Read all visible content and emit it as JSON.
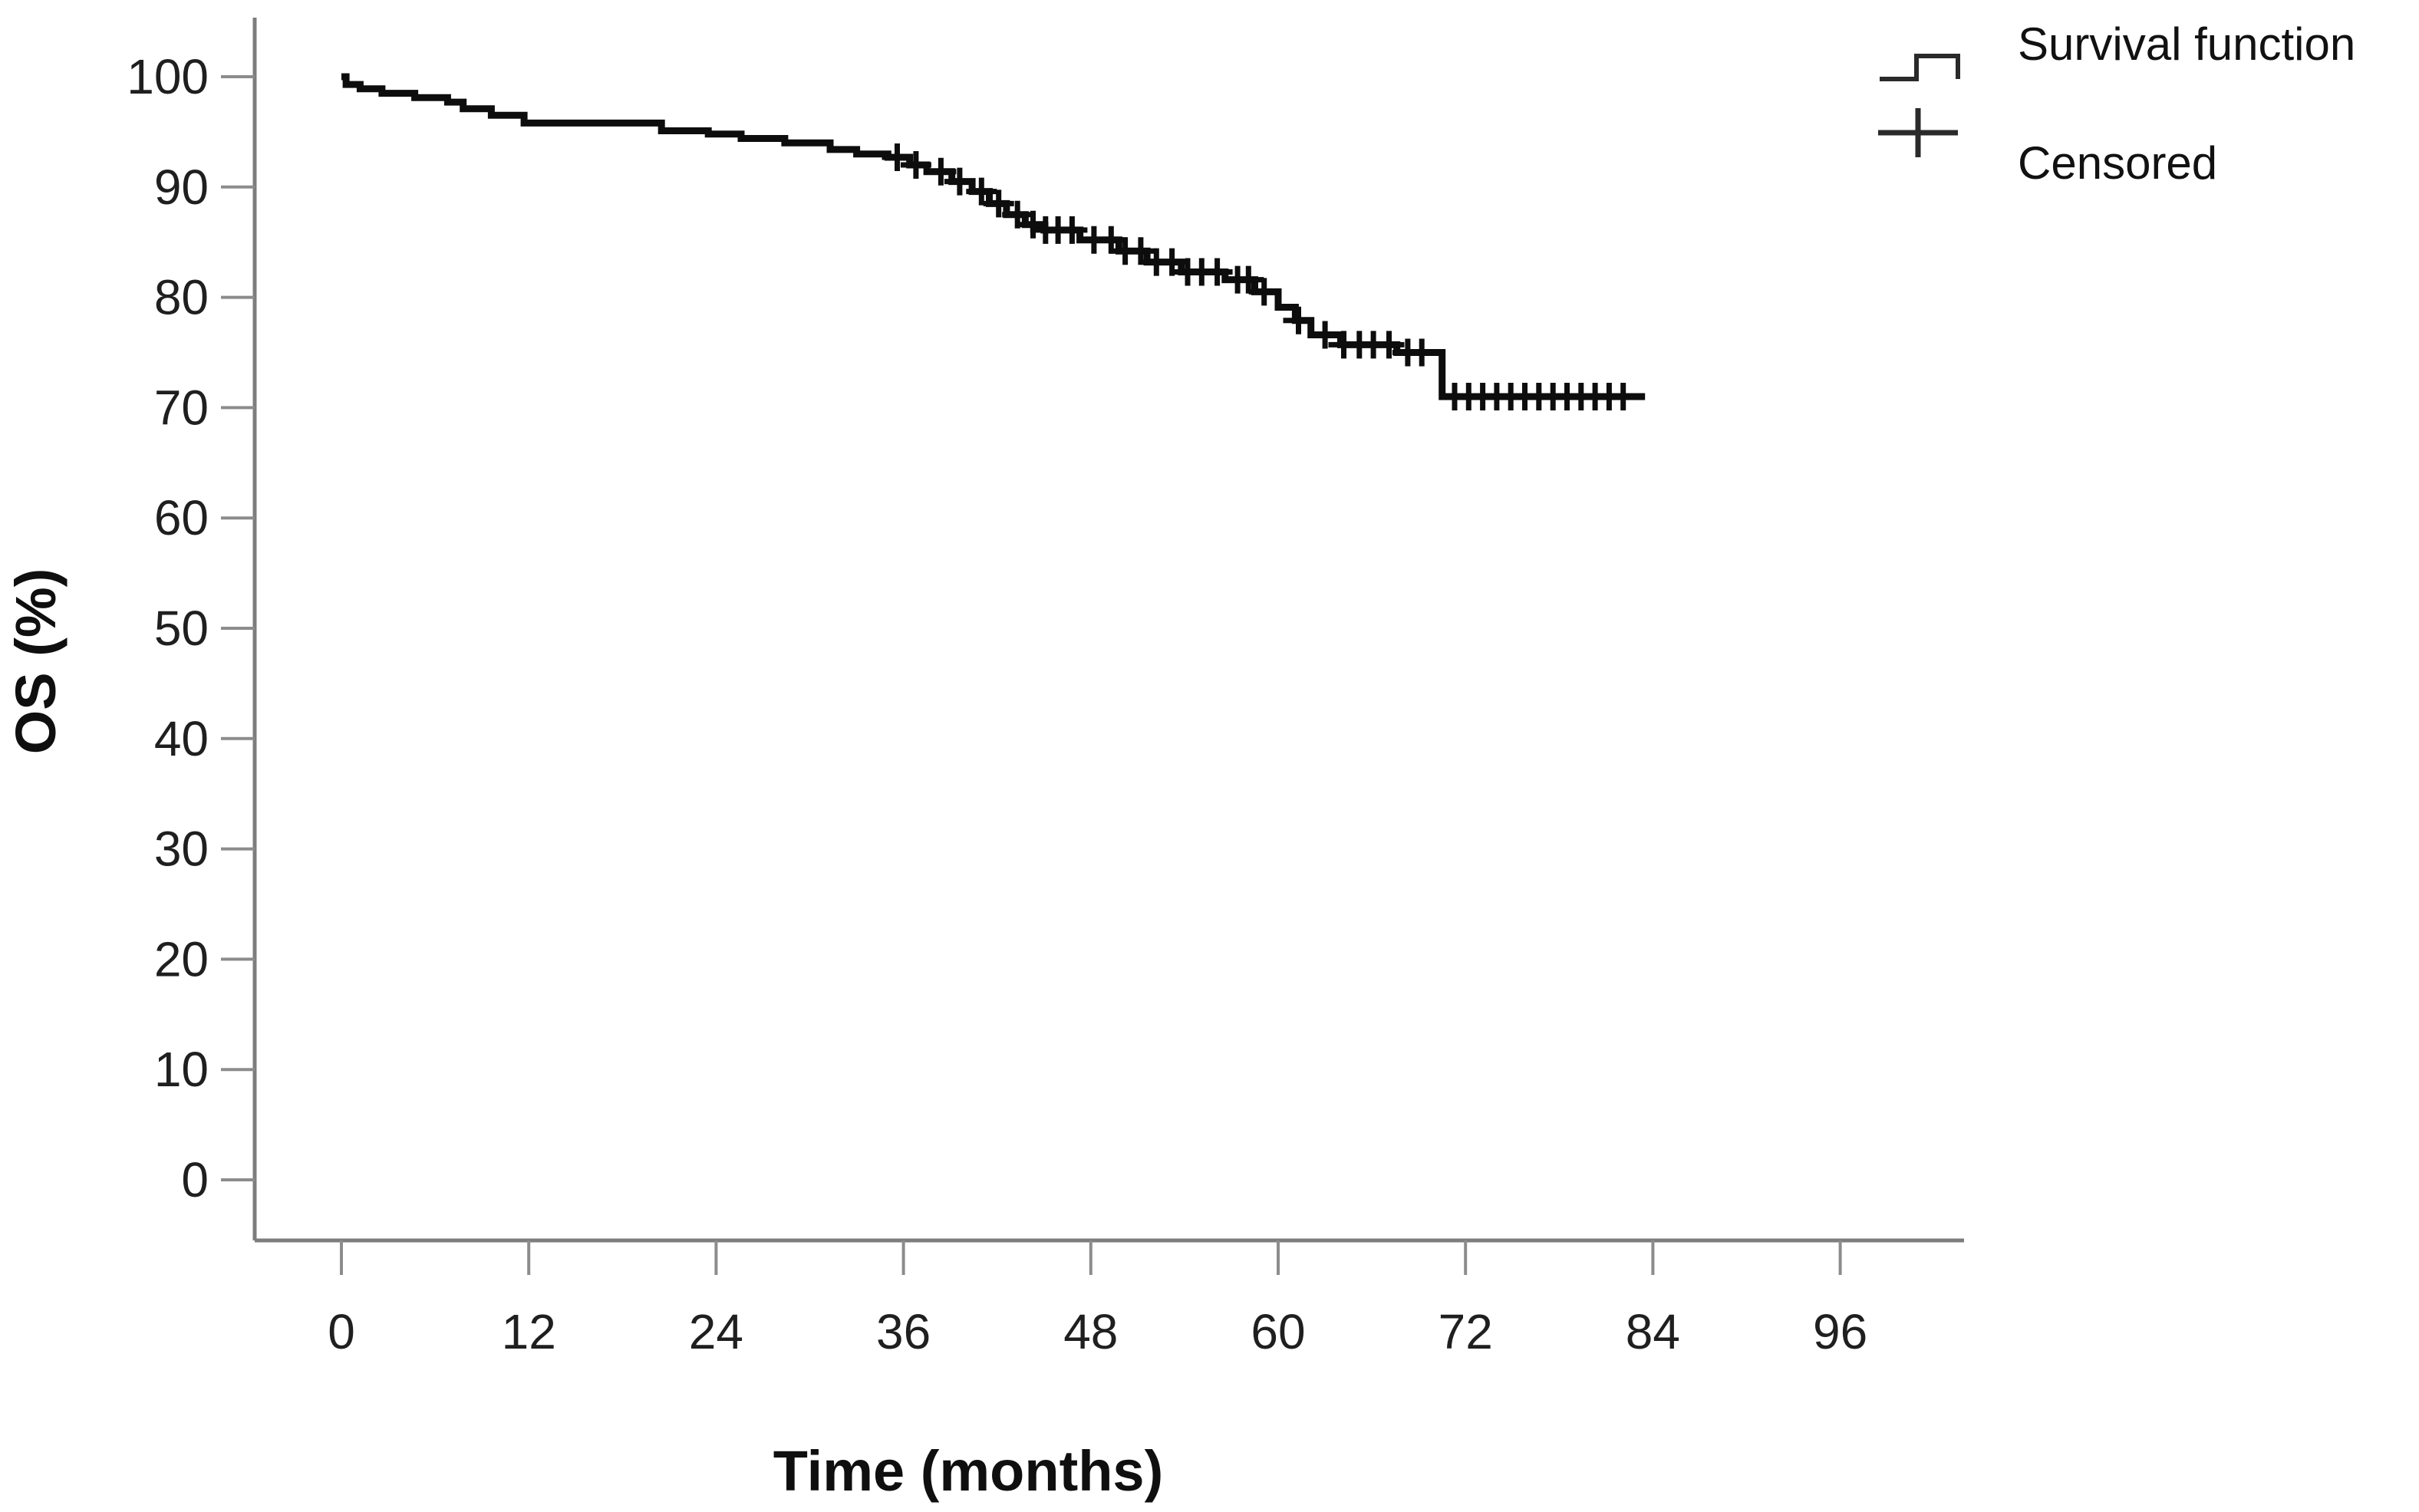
{
  "figure": {
    "background": "#ffffff"
  },
  "axes": {
    "x_title": "Time (months)",
    "y_title": "OS (%)"
  },
  "legend": {
    "items": [
      {
        "label": "Survival function",
        "symbol": "step-line-icon"
      },
      {
        "label": "Censored",
        "symbol": "plus-icon"
      }
    ]
  },
  "colors": {
    "curve": "#0d0d0d",
    "axis": "#7d7d7d",
    "tick": "#8c8c8c",
    "text": "#1f1f1f"
  },
  "chart_data": {
    "type": "line",
    "subtype": "kaplan-meier-step",
    "title": "",
    "xlabel": "Time (months)",
    "ylabel": "OS (%)",
    "xlim": [
      0,
      104
    ],
    "ylim": [
      0,
      105
    ],
    "grid": false,
    "legend_position": "top-right",
    "x_ticks": [
      0,
      12,
      24,
      36,
      48,
      60,
      72,
      84,
      96
    ],
    "y_ticks": [
      0,
      10,
      20,
      30,
      40,
      50,
      60,
      70,
      80,
      90,
      100
    ],
    "series": [
      {
        "name": "Survival function",
        "style": "step",
        "end_time": 83.5,
        "points": [
          [
            0,
            100
          ],
          [
            0.3,
            99.3
          ],
          [
            1.2,
            98.9
          ],
          [
            2.6,
            98.5
          ],
          [
            4.7,
            98.1
          ],
          [
            6.8,
            97.7
          ],
          [
            7.8,
            97.1
          ],
          [
            9.6,
            96.5
          ],
          [
            11.7,
            95.8
          ],
          [
            20.5,
            95.1
          ],
          [
            23.5,
            94.8
          ],
          [
            25.6,
            94.4
          ],
          [
            28.4,
            94.0
          ],
          [
            31.3,
            93.4
          ],
          [
            33.0,
            93.0
          ],
          [
            35.0,
            92.7
          ],
          [
            36.4,
            92.0
          ],
          [
            37.5,
            91.4
          ],
          [
            39.1,
            90.5
          ],
          [
            40.4,
            89.6
          ],
          [
            41.5,
            88.5
          ],
          [
            42.6,
            87.5
          ],
          [
            43.8,
            86.6
          ],
          [
            45.0,
            86.1
          ],
          [
            47.3,
            85.2
          ],
          [
            49.8,
            84.2
          ],
          [
            51.6,
            83.2
          ],
          [
            53.8,
            82.3
          ],
          [
            56.6,
            81.6
          ],
          [
            58.5,
            80.5
          ],
          [
            60.0,
            79.1
          ],
          [
            61.1,
            77.9
          ],
          [
            62.1,
            76.6
          ],
          [
            64.0,
            75.7
          ],
          [
            67.6,
            75.0
          ],
          [
            70.5,
            71.0
          ]
        ]
      },
      {
        "name": "Censored",
        "style": "plus-marks",
        "points": [
          [
            35.6,
            92.7
          ],
          [
            36.8,
            92.0
          ],
          [
            38.4,
            91.4
          ],
          [
            39.6,
            90.5
          ],
          [
            41.0,
            89.6
          ],
          [
            42.1,
            88.5
          ],
          [
            43.3,
            87.5
          ],
          [
            44.3,
            86.6
          ],
          [
            45.1,
            86.1
          ],
          [
            45.9,
            86.1
          ],
          [
            46.8,
            86.1
          ],
          [
            48.2,
            85.2
          ],
          [
            49.3,
            85.2
          ],
          [
            50.2,
            84.2
          ],
          [
            51.2,
            84.2
          ],
          [
            52.2,
            83.2
          ],
          [
            53.2,
            83.2
          ],
          [
            54.2,
            82.3
          ],
          [
            55.1,
            82.3
          ],
          [
            56.1,
            82.3
          ],
          [
            57.4,
            81.6
          ],
          [
            58.1,
            81.6
          ],
          [
            59.1,
            80.5
          ],
          [
            61.3,
            77.9
          ],
          [
            63.0,
            76.6
          ],
          [
            64.2,
            75.7
          ],
          [
            65.2,
            75.7
          ],
          [
            66.1,
            75.7
          ],
          [
            67.1,
            75.7
          ],
          [
            68.3,
            75.0
          ],
          [
            69.2,
            75.0
          ],
          [
            71.3,
            71.0
          ],
          [
            72.2,
            71.0
          ],
          [
            73.1,
            71.0
          ],
          [
            74.0,
            71.0
          ],
          [
            74.9,
            71.0
          ],
          [
            75.8,
            71.0
          ],
          [
            76.7,
            71.0
          ],
          [
            77.6,
            71.0
          ],
          [
            78.5,
            71.0
          ],
          [
            79.4,
            71.0
          ],
          [
            80.3,
            71.0
          ],
          [
            81.2,
            71.0
          ],
          [
            82.1,
            71.0
          ]
        ]
      }
    ]
  }
}
